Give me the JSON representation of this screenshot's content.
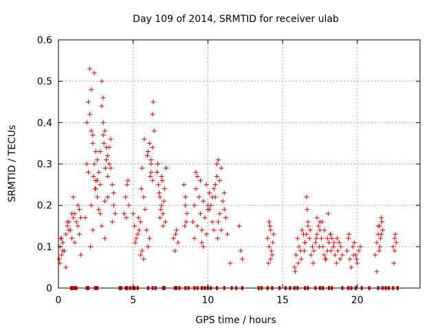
{
  "chart_data": {
    "type": "scatter",
    "title": "Day 109 of 2014, SRMTID for receiver ulab",
    "xlabel": "GPS time / hours",
    "ylabel": "SRMTID / TECUs",
    "xlim": [
      0,
      24.2
    ],
    "ylim": [
      0,
      0.6
    ],
    "xticks": [
      0,
      5,
      10,
      15,
      20
    ],
    "yticks": [
      0,
      0.1,
      0.2,
      0.3,
      0.4,
      0.5,
      0.6
    ],
    "xtick_labels": [
      "0",
      "5",
      "10",
      "15",
      "20"
    ],
    "ytick_labels": [
      "0",
      "0.1",
      "0.2",
      "0.3",
      "0.4",
      "0.5",
      "0.6"
    ],
    "grid": true,
    "marker": "+",
    "series": [
      {
        "name": "SRMTID",
        "color": "#e00000",
        "x": [
          0.05,
          0.1,
          0.15,
          0.2,
          0.3,
          0.4,
          0.5,
          0.6,
          0.7,
          0.8,
          0.9,
          1.0,
          1.1,
          1.2,
          1.3,
          1.4,
          1.5,
          0.1,
          0.3,
          0.5,
          0.7,
          0.9,
          1.1,
          1.3,
          1.5,
          0.2,
          0.6,
          1.0,
          1.4,
          1.8,
          1.9,
          2.0,
          2.1,
          2.2,
          2.3,
          2.4,
          2.5,
          2.6,
          2.7,
          2.8,
          2.9,
          3.0,
          3.1,
          3.2,
          3.3,
          3.4,
          3.5,
          3.6,
          3.7,
          3.8,
          1.9,
          2.1,
          2.3,
          2.5,
          2.7,
          2.9,
          3.1,
          3.3,
          3.5,
          3.7,
          2.0,
          2.2,
          2.4,
          2.6,
          2.8,
          3.0,
          3.2,
          3.4,
          3.6,
          2.15,
          2.3,
          2.45,
          2.6,
          2.9,
          3.05,
          3.15,
          3.3,
          2.2,
          2.35,
          2.5,
          2.8,
          3.0,
          3.1,
          4.5,
          4.6,
          4.7,
          4.55,
          4.65,
          4.4,
          5.0,
          5.1,
          5.2,
          5.3,
          5.4,
          5.5,
          5.6,
          5.7,
          5.8,
          5.9,
          6.0,
          6.1,
          6.2,
          6.3,
          6.4,
          5.15,
          5.35,
          5.55,
          5.75,
          5.95,
          6.15,
          6.35,
          5.5,
          5.6,
          5.7,
          6.0,
          6.1,
          6.2,
          6.3,
          6.2,
          6.3,
          6.6,
          6.7,
          6.8,
          6.9,
          7.0,
          7.1,
          7.2,
          6.65,
          6.75,
          6.85,
          6.95,
          7.05,
          7.15,
          6.8,
          6.9,
          7.0,
          7.7,
          7.8,
          7.9,
          8.0,
          8.4,
          8.5,
          8.6,
          8.5,
          8.45,
          7.85,
          8.55,
          9.0,
          9.1,
          9.2,
          9.3,
          9.4,
          9.5,
          9.6,
          9.7,
          9.8,
          9.9,
          10.0,
          10.1,
          10.2,
          10.3,
          10.4,
          10.5,
          10.6,
          10.7,
          10.8,
          10.9,
          11.0,
          11.1,
          11.2,
          9.1,
          9.3,
          9.5,
          9.7,
          9.9,
          10.1,
          10.3,
          10.5,
          10.7,
          10.9,
          11.1,
          9.2,
          9.6,
          10.0,
          10.4,
          10.8,
          10.6,
          10.65,
          11.3,
          11.5,
          12.1,
          12.2,
          12.3,
          14.0,
          14.1,
          14.2,
          14.3,
          14.4,
          14.05,
          14.15,
          14.25,
          14.35,
          14.1,
          14.2,
          15.8,
          15.9,
          16.0,
          16.1,
          16.2,
          16.3,
          16.4,
          16.5,
          16.6,
          16.7,
          16.8,
          16.9,
          17.0,
          17.1,
          17.2,
          17.3,
          17.4,
          17.5,
          17.6,
          17.7,
          17.8,
          17.9,
          18.0,
          18.1,
          18.2,
          18.3,
          18.4,
          18.5,
          18.6,
          18.7,
          18.8,
          18.9,
          19.0,
          15.85,
          16.05,
          16.25,
          16.45,
          16.65,
          16.85,
          17.05,
          17.25,
          17.45,
          17.65,
          17.85,
          18.05,
          18.25,
          18.45,
          18.65,
          18.85,
          16.6,
          16.7,
          16.5,
          17.3,
          17.5,
          17.8,
          18.2,
          18.4,
          18.0,
          19.3,
          19.4,
          19.5,
          19.6,
          19.7,
          19.8,
          19.9,
          20.0,
          20.1,
          20.2,
          19.45,
          19.75,
          19.95,
          21.2,
          21.3,
          21.4,
          21.5,
          21.6,
          21.7,
          21.45,
          21.55,
          21.65,
          21.4,
          21.5,
          21.6,
          21.3,
          22.4,
          22.5,
          22.6,
          22.45,
          22.55,
          22.5
        ],
        "y": [
          0.07,
          0.1,
          0.12,
          0.08,
          0.11,
          0.09,
          0.13,
          0.15,
          0.16,
          0.14,
          0.12,
          0.17,
          0.18,
          0.16,
          0.15,
          0.19,
          0.17,
          0.06,
          0.09,
          0.05,
          0.14,
          0.18,
          0.11,
          0.2,
          0.08,
          0.12,
          0.16,
          0.22,
          0.13,
          0.17,
          0.4,
          0.45,
          0.53,
          0.48,
          0.35,
          0.3,
          0.26,
          0.22,
          0.28,
          0.33,
          0.5,
          0.46,
          0.38,
          0.31,
          0.27,
          0.34,
          0.29,
          0.25,
          0.2,
          0.18,
          0.3,
          0.42,
          0.37,
          0.24,
          0.19,
          0.15,
          0.21,
          0.32,
          0.36,
          0.23,
          0.28,
          0.38,
          0.52,
          0.26,
          0.18,
          0.4,
          0.34,
          0.3,
          0.16,
          0.1,
          0.14,
          0.24,
          0.31,
          0.44,
          0.35,
          0.29,
          0.22,
          0.2,
          0.27,
          0.33,
          0.25,
          0.37,
          0.12,
          0.22,
          0.25,
          0.2,
          0.17,
          0.26,
          0.18,
          0.18,
          0.15,
          0.12,
          0.13,
          0.14,
          0.16,
          0.29,
          0.22,
          0.19,
          0.14,
          0.1,
          0.12,
          0.3,
          0.34,
          0.38,
          0.11,
          0.17,
          0.24,
          0.36,
          0.32,
          0.27,
          0.45,
          0.08,
          0.09,
          0.07,
          0.33,
          0.35,
          0.31,
          0.42,
          0.28,
          0.26,
          0.28,
          0.25,
          0.22,
          0.2,
          0.18,
          0.24,
          0.29,
          0.3,
          0.23,
          0.19,
          0.26,
          0.21,
          0.16,
          0.17,
          0.27,
          0.15,
          0.12,
          0.09,
          0.14,
          0.11,
          0.25,
          0.22,
          0.18,
          0.2,
          0.15,
          0.13,
          0.16,
          0.16,
          0.2,
          0.24,
          0.27,
          0.22,
          0.18,
          0.14,
          0.21,
          0.17,
          0.25,
          0.19,
          0.23,
          0.2,
          0.16,
          0.24,
          0.22,
          0.27,
          0.31,
          0.18,
          0.14,
          0.21,
          0.19,
          0.17,
          0.12,
          0.15,
          0.26,
          0.1,
          0.13,
          0.19,
          0.22,
          0.25,
          0.16,
          0.29,
          0.23,
          0.28,
          0.11,
          0.2,
          0.14,
          0.26,
          0.3,
          0.12,
          0.13,
          0.06,
          0.15,
          0.09,
          0.07,
          0.12,
          0.1,
          0.14,
          0.08,
          0.13,
          0.06,
          0.15,
          0.09,
          0.11,
          0.16,
          0.07,
          0.05,
          0.08,
          0.12,
          0.1,
          0.09,
          0.14,
          0.13,
          0.11,
          0.22,
          0.16,
          0.12,
          0.08,
          0.1,
          0.09,
          0.11,
          0.13,
          0.15,
          0.14,
          0.12,
          0.1,
          0.08,
          0.07,
          0.09,
          0.11,
          0.13,
          0.12,
          0.1,
          0.08,
          0.06,
          0.09,
          0.11,
          0.1,
          0.08,
          0.04,
          0.06,
          0.07,
          0.09,
          0.19,
          0.14,
          0.06,
          0.12,
          0.1,
          0.16,
          0.07,
          0.18,
          0.09,
          0.11,
          0.12,
          0.07,
          0.13,
          0.15,
          0.11,
          0.17,
          0.16,
          0.14,
          0.13,
          0.1,
          0.12,
          0.09,
          0.12,
          0.07,
          0.05,
          0.1,
          0.11,
          0.08,
          0.06,
          0.09,
          0.1,
          0.13,
          0.08,
          0.07,
          0.08,
          0.11,
          0.13,
          0.15,
          0.17,
          0.14,
          0.09,
          0.12,
          0.16,
          0.15,
          0.1,
          0.13,
          0.04,
          0.1,
          0.12,
          0.11,
          0.06,
          0.13,
          0.09
        ],
        "zero_x": [
          0.85,
          0.95,
          1.1,
          1.2,
          1.9,
          2.0,
          2.45,
          2.5,
          2.6,
          4.1,
          4.2,
          4.5,
          4.6,
          4.8,
          5.0,
          5.1,
          5.3,
          6.0,
          6.3,
          6.5,
          7.0,
          7.1,
          7.8,
          7.9,
          8.1,
          8.5,
          8.7,
          9.1,
          9.3,
          9.6,
          9.8,
          10.0,
          10.2,
          10.6,
          11.1,
          11.6,
          11.9,
          12.3,
          13.4,
          13.6,
          14.0,
          14.3,
          14.8,
          15.2,
          15.5,
          15.8,
          16.0,
          16.5,
          16.7,
          17.2,
          17.5,
          17.7,
          18.1,
          18.3,
          19.0,
          19.4,
          19.6,
          19.9,
          20.3,
          20.8,
          21.4,
          21.7,
          21.9,
          22.1,
          22.4,
          22.7
        ],
        "zero_y": 0
      }
    ]
  }
}
